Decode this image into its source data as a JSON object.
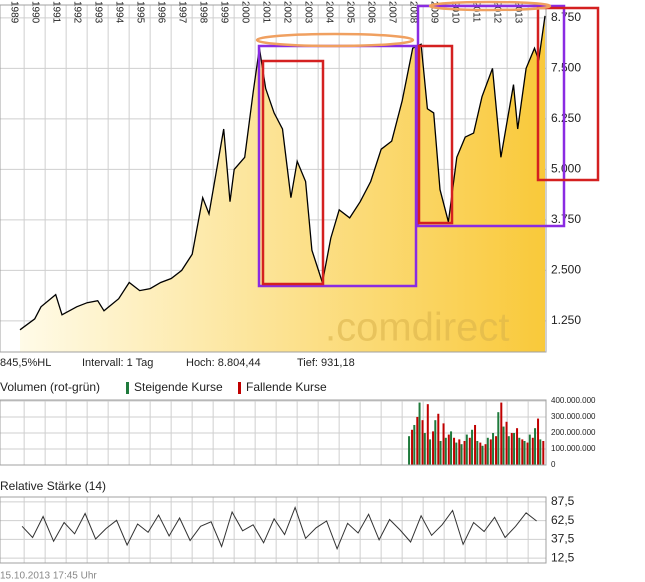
{
  "info": {
    "scale": "845,5%HL",
    "interval": "Intervall: 1 Tag",
    "high": "Hoch: 8.804,44",
    "low": "Tief: 931,18"
  },
  "watermark": ".comdirect",
  "footer": "15.10.2013 17:45 Uhr",
  "chart_data": [
    {
      "type": "area",
      "color": "#000000",
      "fill": [
        "#fffbe8",
        "#f9c93a"
      ],
      "grid": true,
      "x": [
        1988.8,
        1989.5,
        1989.8,
        1990.5,
        1990.8,
        1991.5,
        1992.0,
        1992.5,
        1992.8,
        1993.5,
        1994.0,
        1994.5,
        1995.0,
        1995.5,
        1996.0,
        1996.5,
        1997.0,
        1997.5,
        1997.8,
        1998.5,
        1998.8,
        1999.0,
        1999.5,
        1999.9,
        2000.2,
        2000.5,
        2000.9,
        2001.3,
        2001.7,
        2002.0,
        2002.4,
        2002.7,
        2003.2,
        2003.6,
        2004.0,
        2004.5,
        2005.0,
        2005.5,
        2006.0,
        2006.5,
        2007.0,
        2007.5,
        2007.9,
        2008.2,
        2008.5,
        2008.8,
        2009.2,
        2009.6,
        2010.0,
        2010.4,
        2010.8,
        2011.3,
        2011.7,
        2012.0,
        2012.3,
        2012.5,
        2012.9,
        2013.3,
        2013.5,
        2013.8
      ],
      "values": [
        1030,
        1300,
        1600,
        1900,
        1400,
        1600,
        1700,
        1750,
        1500,
        1800,
        2200,
        2000,
        2050,
        2200,
        2300,
        2500,
        2900,
        4300,
        3900,
        6000,
        4200,
        5000,
        5300,
        6900,
        8000,
        7000,
        6400,
        6000,
        4300,
        5200,
        4700,
        3000,
        2200,
        3300,
        4000,
        3800,
        4200,
        4700,
        5500,
        5700,
        6700,
        8000,
        8100,
        6500,
        6400,
        4500,
        3700,
        5300,
        5800,
        5900,
        6800,
        7500,
        5300,
        6200,
        7100,
        6000,
        7500,
        8000,
        7700,
        8800
      ],
      "xlim": [
        1987.85,
        2013.85
      ],
      "xticks": [
        1989,
        1990,
        1991,
        1992,
        1993,
        1994,
        1995,
        1996,
        1997,
        1998,
        1999,
        2000,
        2001,
        2002,
        2003,
        2004,
        2005,
        2006,
        2007,
        2008,
        2009,
        2010,
        2011,
        2012,
        2013
      ],
      "ylim": [
        480,
        9070
      ],
      "yticks": [
        {
          "value": 1250,
          "label": "1.250"
        },
        {
          "value": 2500,
          "label": "2.500"
        },
        {
          "value": 3750,
          "label": "3.750"
        },
        {
          "value": 5000,
          "label": "5.000"
        },
        {
          "value": 6250,
          "label": "6.250"
        },
        {
          "value": 7500,
          "label": "7.500"
        },
        {
          "value": 8750,
          "label": "8.750"
        }
      ]
    },
    {
      "type": "bar",
      "title": "Volumen (rot-grün)",
      "x": [
        2007.4,
        2007.65,
        2007.9,
        2008.15,
        2008.4,
        2008.65,
        2008.9,
        2009.15,
        2009.4,
        2009.65,
        2009.9,
        2010.15,
        2010.4,
        2010.65,
        2010.9,
        2011.15,
        2011.4,
        2011.65,
        2011.9,
        2012.15,
        2012.4,
        2012.65,
        2012.9,
        2013.15,
        2013.4,
        2013.65
      ],
      "series": [
        {
          "name": "Steigende Kurse",
          "color": "#1f7a3c",
          "values": [
            180000000,
            250000000,
            390000000,
            200000000,
            160000000,
            280000000,
            150000000,
            170000000,
            210000000,
            140000000,
            130000000,
            190000000,
            220000000,
            150000000,
            120000000,
            170000000,
            200000000,
            330000000,
            240000000,
            180000000,
            200000000,
            170000000,
            150000000,
            190000000,
            230000000,
            160000000
          ]
        },
        {
          "name": "Fallende Kurse",
          "color": "#c00000",
          "values": [
            220000000,
            300000000,
            280000000,
            380000000,
            210000000,
            320000000,
            260000000,
            190000000,
            170000000,
            160000000,
            150000000,
            170000000,
            250000000,
            140000000,
            130000000,
            160000000,
            180000000,
            390000000,
            270000000,
            200000000,
            230000000,
            160000000,
            140000000,
            170000000,
            290000000,
            150000000
          ]
        }
      ],
      "xlim": [
        1987.85,
        2013.85
      ],
      "ylim": [
        0,
        406000000
      ],
      "yticks": [
        0,
        {
          "value": 100000000,
          "label": "100.000.000"
        },
        {
          "value": 200000000,
          "label": "200.000.000"
        },
        {
          "value": 300000000,
          "label": "300.000.000"
        },
        {
          "value": 400000000,
          "label": "400.000.000"
        }
      ]
    },
    {
      "type": "line",
      "title": "Relative Stärke (14)",
      "color": "#333333",
      "x": [
        1988.9,
        1989.4,
        1989.9,
        1990.4,
        1990.9,
        1991.4,
        1991.9,
        1992.4,
        1992.9,
        1993.4,
        1993.9,
        1994.4,
        1994.9,
        1995.4,
        1995.9,
        1996.4,
        1996.9,
        1997.4,
        1997.9,
        1998.4,
        1998.9,
        1999.4,
        1999.9,
        2000.4,
        2000.9,
        2001.4,
        2001.9,
        2002.4,
        2002.9,
        2003.4,
        2003.9,
        2004.4,
        2004.9,
        2005.4,
        2005.9,
        2006.4,
        2006.9,
        2007.4,
        2007.9,
        2008.4,
        2008.9,
        2009.4,
        2009.9,
        2010.4,
        2010.9,
        2011.4,
        2011.9,
        2012.4,
        2012.9,
        2013.4
      ],
      "values": [
        55,
        40,
        68,
        35,
        60,
        45,
        72,
        38,
        52,
        63,
        30,
        58,
        47,
        70,
        42,
        66,
        36,
        55,
        61,
        28,
        74,
        49,
        57,
        33,
        65,
        44,
        80,
        39,
        53,
        62,
        25,
        59,
        46,
        71,
        37,
        64,
        50,
        34,
        69,
        43,
        57,
        76,
        31,
        60,
        48,
        67,
        40,
        55,
        73,
        62
      ],
      "xlim": [
        1987.85,
        2013.85
      ],
      "ylim": [
        6,
        94
      ],
      "yticks": [
        {
          "value": 12.5,
          "label": "12,5"
        },
        {
          "value": 37.5,
          "label": "37,5"
        },
        {
          "value": 62.5,
          "label": "62,5"
        },
        {
          "value": 87.5,
          "label": "87,5"
        }
      ]
    }
  ]
}
